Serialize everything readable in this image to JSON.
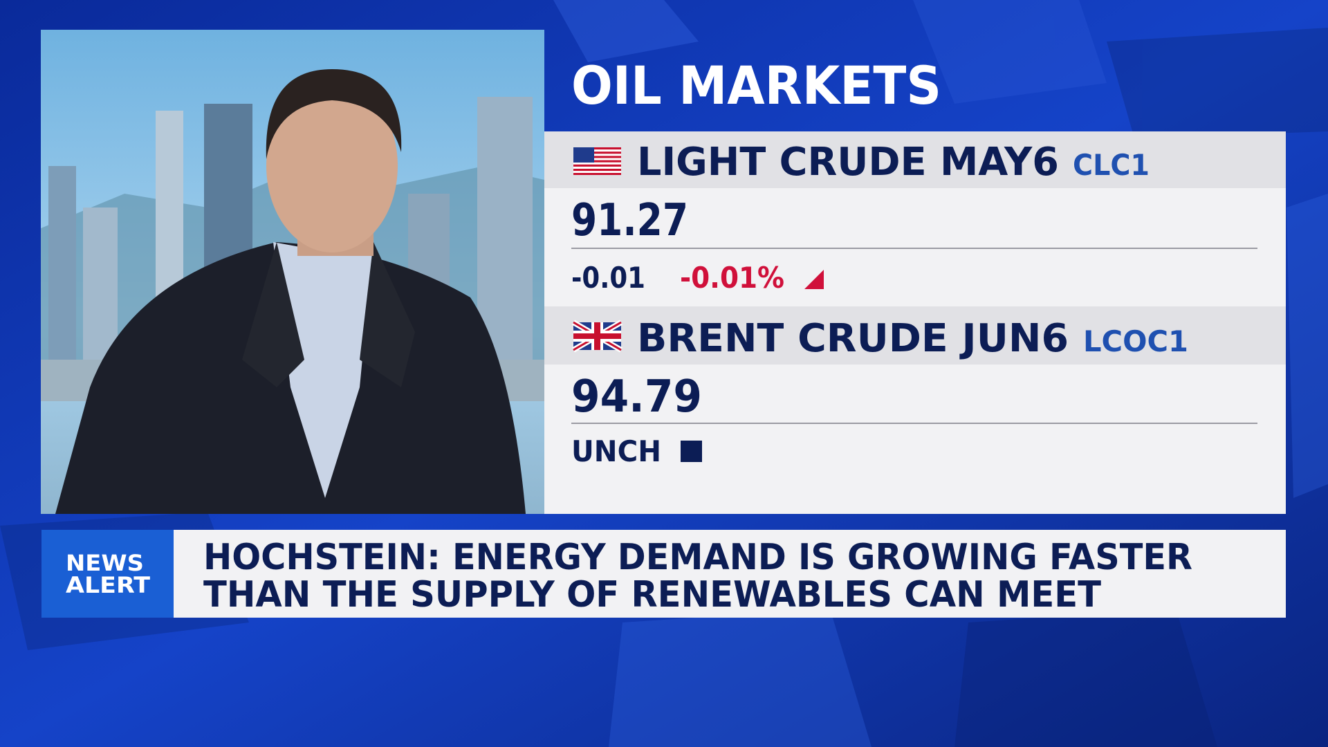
{
  "title": "OIL MARKETS",
  "quotes": [
    {
      "name": "LIGHT CRUDE MAY6",
      "symbol": "CLC1",
      "price": "91.27",
      "change": "-0.01",
      "change_percent": "-0.01%"
    },
    {
      "name": "BRENT CRUDE JUN6",
      "symbol": "LCOC1",
      "price": "94.79",
      "change": "UNCH"
    }
  ],
  "news_alert": {
    "label": [
      "NEWS",
      "ALERT"
    ],
    "headline": [
      "HOCHSTEIN: ENERGY DEMAND IS GROWING FASTER",
      "THAN THE SUPPLY OF RENEWABLES CAN MEET"
    ]
  }
}
